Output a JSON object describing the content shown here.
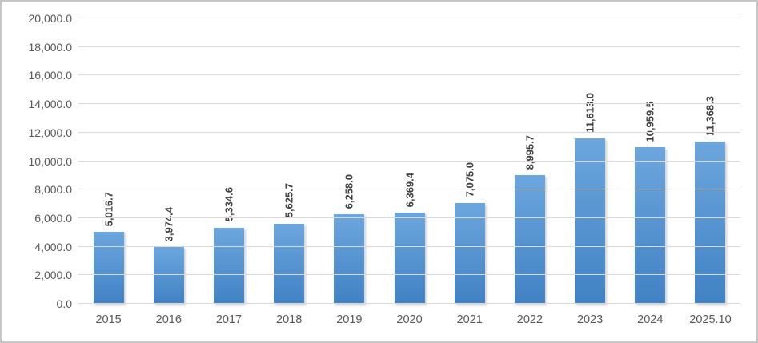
{
  "chart_data": {
    "type": "bar",
    "title": "",
    "categories": [
      "2015",
      "2016",
      "2017",
      "2018",
      "2019",
      "2020",
      "2021",
      "2022",
      "2023",
      "2024",
      "2025.10"
    ],
    "values": [
      5016.7,
      3974.4,
      5334.6,
      5625.7,
      6258.0,
      6369.4,
      7075.0,
      8995.7,
      11613.0,
      10959.5,
      11368.3
    ],
    "value_labels": [
      "5,016.7",
      "3,974.4",
      "5,334.6",
      "5,625.7",
      "6,258.0",
      "6,369.4",
      "7,075.0",
      "8,995.7",
      "11,613.0",
      "10,959.5",
      "11,368.3"
    ],
    "ylim": [
      0,
      20000
    ],
    "ytick_step": 2000,
    "ytick_labels": [
      "0.0",
      "2,000.0",
      "4,000.0",
      "6,000.0",
      "8,000.0",
      "10,000.0",
      "12,000.0",
      "14,000.0",
      "16,000.0",
      "18,000.0",
      "20,000.0"
    ],
    "grid": true,
    "legend": false,
    "colors": {
      "bar_gradient_top": "#6ca6dd",
      "bar_gradient_bottom": "#4182c4",
      "gridline": "#d9d9d9",
      "value_label_text": "#404040",
      "axis_text": "#595959",
      "frame_border": "#c6c6c6",
      "background": "#ffffff"
    }
  }
}
